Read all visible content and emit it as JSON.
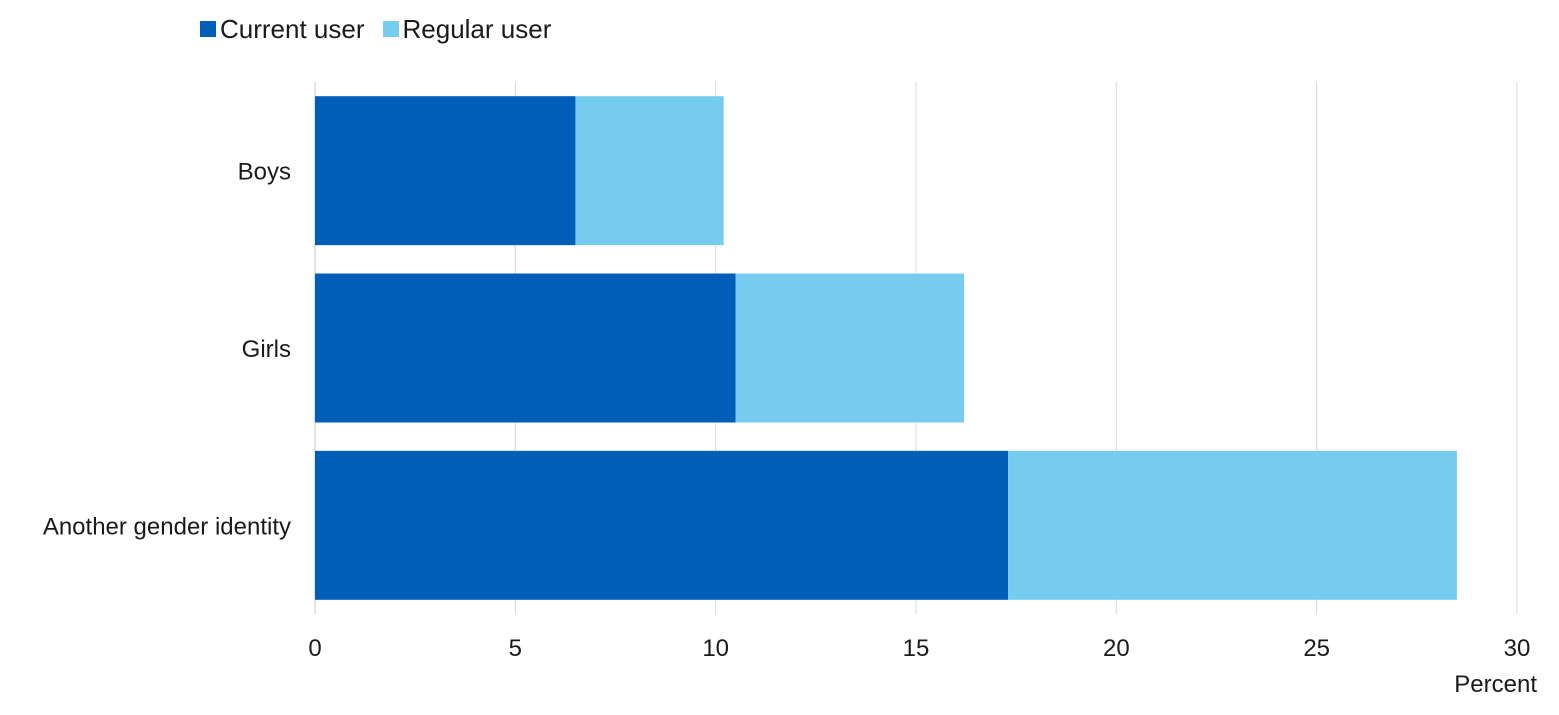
{
  "chart_data": {
    "type": "bar",
    "orientation": "horizontal",
    "stacked": true,
    "categories": [
      "Boys",
      "Girls",
      "Another gender identity"
    ],
    "series": [
      {
        "name": "Current user",
        "values": [
          6.5,
          10.5,
          17.3
        ],
        "color": "#005EB8"
      },
      {
        "name": "Regular user",
        "values": [
          3.7,
          5.7,
          11.2
        ],
        "color": "#75CCEF"
      }
    ],
    "xlabel": "Percent",
    "ylabel": "",
    "xlim": [
      0,
      30
    ],
    "xticks": [
      "0",
      "5",
      "10",
      "15",
      "20",
      "25",
      "30"
    ],
    "grid": true,
    "legend_position": "top"
  }
}
